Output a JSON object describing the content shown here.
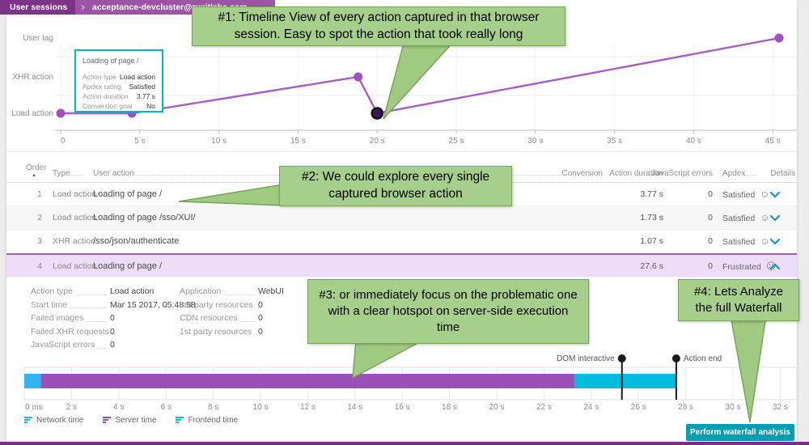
{
  "header": {
    "breadcrumb": [
      {
        "label": "User sessions"
      },
      {
        "label": "acceptance-devcluster@ruxitlabs.com"
      }
    ]
  },
  "timeline_chart": {
    "type": "scatter",
    "rows": [
      "User tag",
      "XHR action",
      "Load action"
    ],
    "x_ticks": [
      "0",
      "5 s",
      "10 s",
      "15 s",
      "20 s",
      "25 s",
      "30 s",
      "35 s",
      "40 s",
      "45 s"
    ],
    "x_tick_step_s": 5,
    "points": [
      {
        "t_s": 0.0,
        "row": "Load action",
        "highlighted": false
      },
      {
        "t_s": 4.5,
        "row": "Load action",
        "highlighted": false
      },
      {
        "t_s": 18.8,
        "row": "XHR action",
        "highlighted": false
      },
      {
        "t_s": 20.0,
        "row": "Load action",
        "highlighted": true
      },
      {
        "t_s": 45.4,
        "row": "User tag",
        "highlighted": false
      }
    ],
    "line_color": "#a55fc5",
    "point_color": "#a050c2",
    "highlight_fill": "#3f1659",
    "tooltip": {
      "title": "Loading of page /",
      "fields": [
        {
          "label": "Action type",
          "value": "Load action"
        },
        {
          "label": "Apdex rating",
          "value": "Satisfied"
        },
        {
          "label": "Action duration",
          "value": "3.77 s"
        },
        {
          "label": "Conversion goal",
          "value": "No"
        }
      ]
    }
  },
  "actions_table": {
    "columns": [
      "Order",
      "Type",
      "User action",
      "Conversion",
      "Action duration",
      "JavaScript errors",
      "Apdex",
      "Details"
    ],
    "sort_icon": "▲",
    "rows": [
      {
        "order": "1",
        "type": "Load action",
        "user_action": "Loading of page /",
        "conversion": "",
        "duration": "3.77 s",
        "js_errors": "0",
        "apdex": "Satisfied",
        "mood": "happy",
        "expanded": false
      },
      {
        "order": "2",
        "type": "Load action",
        "user_action": "Loading of page /sso/XUI/",
        "conversion": "",
        "duration": "1.73 s",
        "js_errors": "0",
        "apdex": "Satisfied",
        "mood": "happy",
        "expanded": false
      },
      {
        "order": "3",
        "type": "XHR action",
        "user_action": "/sso/json/authenticate",
        "conversion": "",
        "duration": "1.07 s",
        "js_errors": "0",
        "apdex": "Satisfied",
        "mood": "happy",
        "expanded": false
      },
      {
        "order": "4",
        "type": "Load action",
        "user_action": "Loading of page /",
        "conversion": "",
        "duration": "27.6 s",
        "js_errors": "0",
        "apdex": "Frustrated",
        "mood": "sad",
        "expanded": true
      }
    ]
  },
  "action_details": {
    "col1": [
      {
        "label": "Action type",
        "value": "Load action"
      },
      {
        "label": "Start time",
        "value": "Mar 15 2017, 05:48:58"
      },
      {
        "label": "Failed images",
        "value": "0"
      },
      {
        "label": "Failed XHR requests",
        "value": "0"
      },
      {
        "label": "JavaScript errors",
        "value": "0"
      }
    ],
    "col2": [
      {
        "label": "Application",
        "value": "WebUI"
      },
      {
        "label": "3rd party resources",
        "value": "0"
      },
      {
        "label": "CDN resources",
        "value": "0"
      },
      {
        "label": "1st party resources",
        "value": "0"
      }
    ]
  },
  "waterfall_chart": {
    "type": "bar",
    "x_ticks": [
      "0 ms",
      "2 s",
      "4 s",
      "6 s",
      "8 s",
      "10 s",
      "12 s",
      "14 s",
      "16 s",
      "18 s",
      "20 s",
      "22 s",
      "24 s",
      "26 s",
      "28 s",
      "30 s",
      "32 s"
    ],
    "x_tick_step_s": 2,
    "segments": [
      {
        "name": "Network time",
        "start_s": 0.0,
        "end_s": 0.7,
        "color": "#2fb5f2"
      },
      {
        "name": "Server time",
        "start_s": 0.7,
        "end_s": 23.3,
        "color": "#9a50b4"
      },
      {
        "name": "Frontend time",
        "start_s": 23.3,
        "end_s": 27.6,
        "color": "#00bcdd"
      }
    ],
    "markers": [
      {
        "label": "DOM interactive",
        "t_s": 25.3,
        "label_side": "left"
      },
      {
        "label": "Action end",
        "t_s": 27.6,
        "label_side": "right"
      }
    ],
    "legend": [
      {
        "label": "Network time",
        "color": "#2fb5f2"
      },
      {
        "label": "Server time",
        "color": "#9a50b4"
      },
      {
        "label": "Frontend time",
        "color": "#00bcdd"
      }
    ]
  },
  "footer": {
    "analyze_button": "Perform waterfall analysis"
  },
  "callouts": [
    {
      "id": 1,
      "text": "#1: Timeline View of every action captured in that browser session. Easy to spot the action that took really long"
    },
    {
      "id": 2,
      "text": "#2: We could explore every single captured browser action"
    },
    {
      "id": 3,
      "text": "#3: or immediately focus on the problematic one with a clear hotspot on server-side execution time"
    },
    {
      "id": 4,
      "text": "#4: Lets Analyze the full Waterfall"
    }
  ]
}
